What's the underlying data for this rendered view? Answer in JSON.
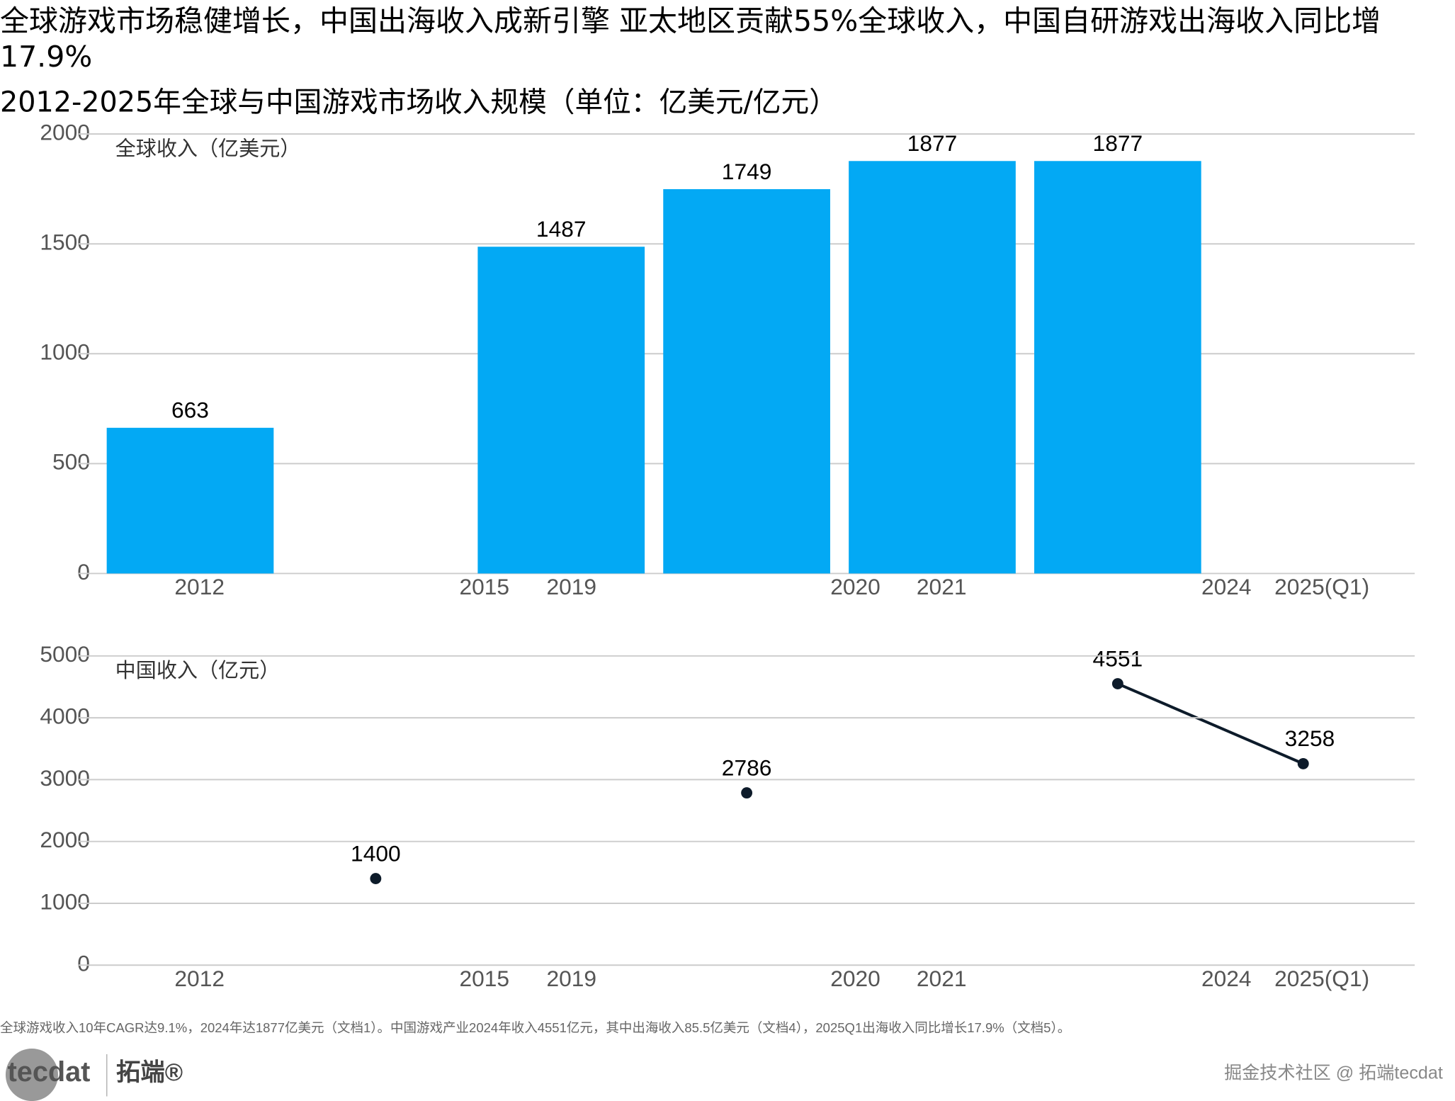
{
  "title": "全球游戏市场稳健增长，中国出海收入成新引擎 亚太地区贡献55%全球收入，中国自研游戏出海收入同比增17.9%",
  "subtitle": "2012-2025年全球与中国游戏市场收入规模（单位：亿美元/亿元）",
  "chart_data": [
    {
      "type": "bar",
      "label": "全球收入（亿美元）",
      "categories": [
        "2012",
        "2015",
        "2019",
        "2020",
        "2021",
        "2024",
        "2025(Q1)"
      ],
      "values": [
        663,
        null,
        1487,
        1749,
        1877,
        1877,
        null
      ],
      "color": "#03a9f4",
      "ylim": [
        0,
        2000
      ],
      "yticks": [
        0,
        500,
        1000,
        1500,
        2000
      ],
      "grid": true
    },
    {
      "type": "line",
      "label": "中国收入（亿元）",
      "categories": [
        "2012",
        "2015",
        "2019",
        "2020",
        "2021",
        "2024",
        "2025(Q1)"
      ],
      "values": [
        null,
        1400,
        null,
        2786,
        null,
        4551,
        3258
      ],
      "color": "#0d1b2a",
      "ylim": [
        0,
        5000
      ],
      "yticks": [
        0,
        1000,
        2000,
        3000,
        4000,
        5000
      ],
      "grid": true
    }
  ],
  "footnote": "全球游戏收入10年CAGR达9.1%，2024年达1877亿美元（文档1）。中国游戏产业2024年收入4551亿元，其中出海收入85.5亿美元（文档4），2025Q1出海收入同比增长17.9%（文档5）。",
  "logo": {
    "brand": "tecdat",
    "name": "拓端®"
  },
  "watermark": "掘金技术社区 @ 拓端tecdat"
}
